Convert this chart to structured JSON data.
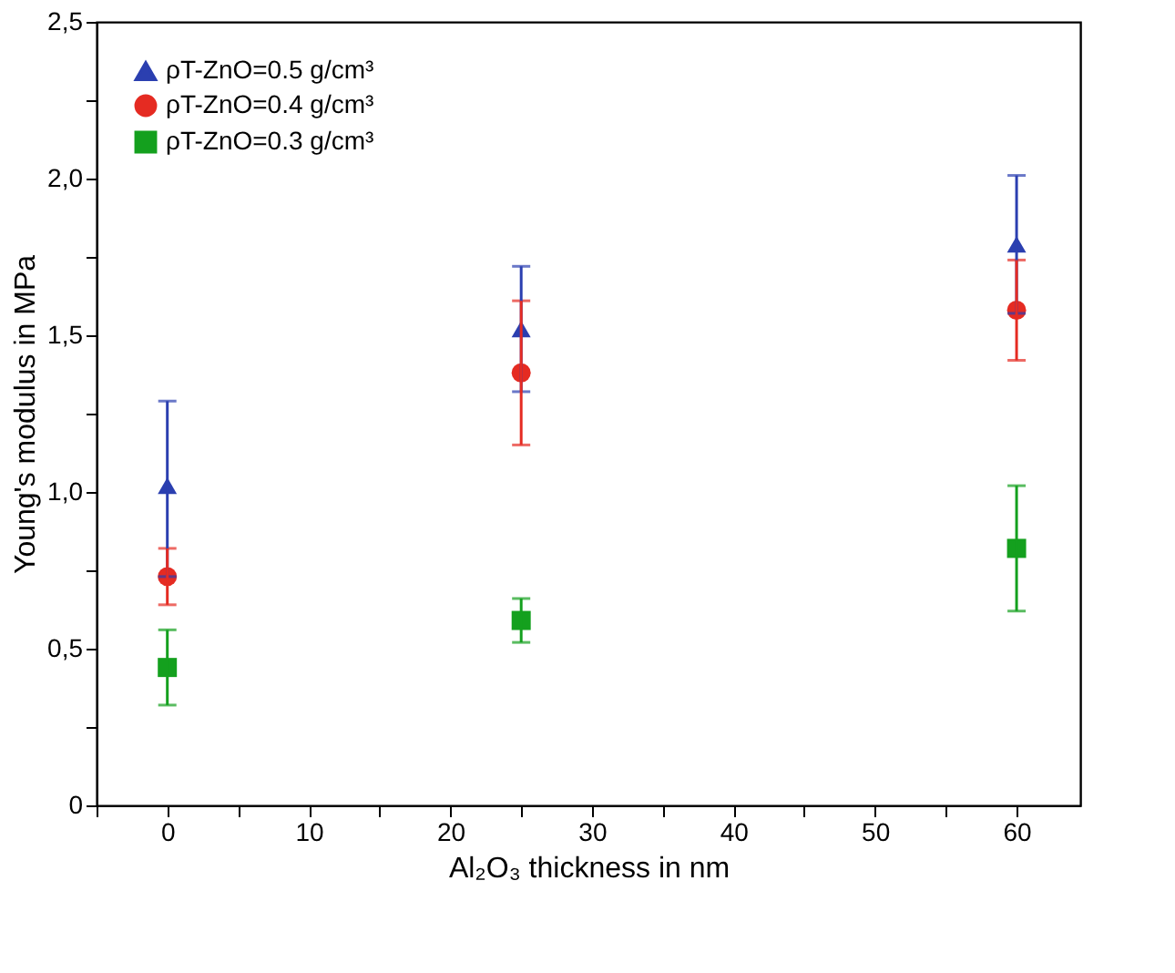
{
  "chart_data": {
    "type": "scatter",
    "xlabel": "Al₂O₃ thickness in nm",
    "ylabel": "Young's modulus in MPa",
    "x": [
      0,
      25,
      60
    ],
    "series": [
      {
        "name": "ρT-ZnO=0.5 g/cm³",
        "color": "#2b3fb0",
        "marker": "triangle",
        "values": [
          1.02,
          1.52,
          1.79
        ],
        "errors": [
          [
            0.73,
            1.29
          ],
          [
            1.32,
            1.72
          ],
          [
            1.57,
            2.01
          ]
        ]
      },
      {
        "name": "ρT-ZnO=0.4 g/cm³",
        "color": "#e52b22",
        "marker": "circle",
        "values": [
          0.73,
          1.38,
          1.58
        ],
        "errors": [
          [
            0.64,
            0.82
          ],
          [
            1.15,
            1.61
          ],
          [
            1.42,
            1.74
          ]
        ]
      },
      {
        "name": "ρT-ZnO=0.3 g/cm³",
        "color": "#14a01e",
        "marker": "square",
        "values": [
          0.44,
          0.59,
          0.82
        ],
        "errors": [
          [
            0.32,
            0.56
          ],
          [
            0.52,
            0.66
          ],
          [
            0.62,
            1.02
          ]
        ]
      }
    ],
    "xlim": [
      -5,
      64.5
    ],
    "xticks": [
      {
        "value": -5,
        "label": null
      },
      0,
      {
        "value": 5,
        "label": null
      },
      10,
      {
        "value": 15,
        "label": null
      },
      20,
      {
        "value": 25,
        "label": null
      },
      30,
      {
        "value": 35,
        "label": null
      },
      40,
      {
        "value": 45,
        "label": null
      },
      50,
      {
        "value": 55,
        "label": null
      },
      60
    ],
    "ylim": [
      0,
      2.5
    ],
    "yticks": [
      0,
      {
        "value": 0.25,
        "label": null
      },
      {
        "value": 0.5,
        "label": "0,5"
      },
      {
        "value": 0.75,
        "label": null
      },
      {
        "value": 1.0,
        "label": "1,0"
      },
      {
        "value": 1.25,
        "label": null
      },
      {
        "value": 1.5,
        "label": "1,5"
      },
      {
        "value": 1.75,
        "label": null
      },
      {
        "value": 2.0,
        "label": "2,0"
      },
      {
        "value": 2.25,
        "label": null
      },
      {
        "value": 2.5,
        "label": "2,5"
      }
    ],
    "grid": false,
    "legend": "top left"
  }
}
